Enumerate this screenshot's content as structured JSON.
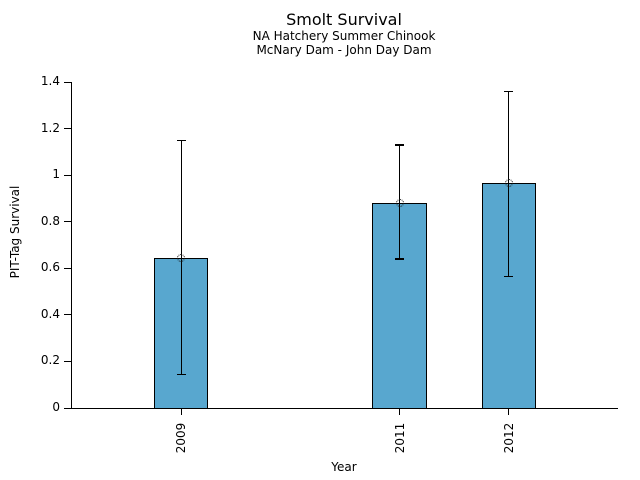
{
  "chart_data": {
    "type": "bar",
    "title": "Smolt Survival",
    "subtitle1": "NA Hatchery Summer Chinook",
    "subtitle2": "McNary Dam - John Day Dam",
    "xlabel": "Year",
    "ylabel": "PIT-Tag Survival",
    "categories": [
      "2009",
      "2011",
      "2012"
    ],
    "x_values": [
      2009,
      2011,
      2012
    ],
    "values": [
      0.645,
      0.88,
      0.965
    ],
    "error_low": [
      0.145,
      0.64,
      0.565
    ],
    "error_high": [
      1.15,
      1.13,
      1.36
    ],
    "marker": "open-circle",
    "grid": false,
    "xlim": [
      2008,
      2013
    ],
    "ylim": [
      0,
      1.4
    ],
    "ytick_labels": [
      "0",
      "0.2",
      "0.4",
      "0.6",
      "0.8",
      "1",
      "1.2",
      "1.4"
    ],
    "bar_width_years": 0.5,
    "colors": {
      "bar_fill": "#58a7cf",
      "bar_edge": "#000000",
      "error_bar": "#000000",
      "marker_edge": "#1a1a1a",
      "axis": "#000000",
      "text": "#000000",
      "background": "#ffffff"
    }
  }
}
